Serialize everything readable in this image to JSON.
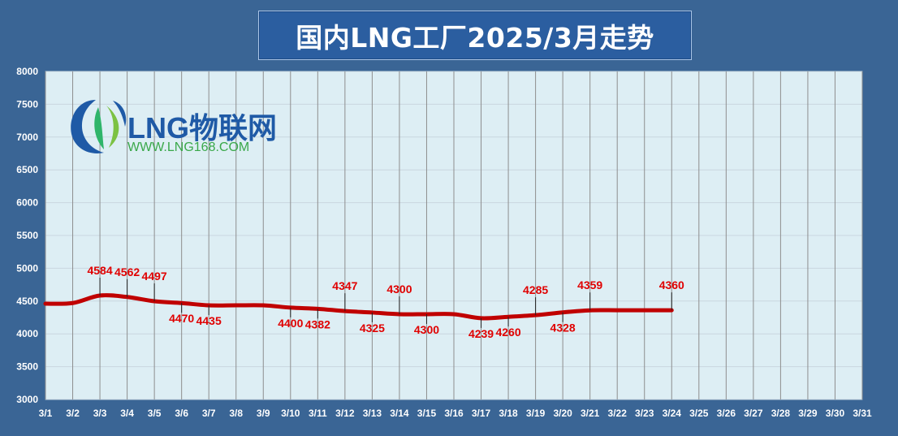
{
  "header": {
    "title": "国内LNG工厂2025/3月走势"
  },
  "logo": {
    "brand": "LNG物联网",
    "url": "WWW.LNG168.COM"
  },
  "colors": {
    "background": "#3a6595",
    "plot_bg": "#ddeef4",
    "line": "#c00000",
    "label": "#e00000",
    "axis_text": "#ffffff"
  },
  "chart_data": {
    "type": "line",
    "title": "国内LNG工厂2025/3月走势",
    "xlabel": "",
    "ylabel": "",
    "ylim": [
      3000,
      8000
    ],
    "y_ticks": [
      3000,
      3500,
      4000,
      4500,
      5000,
      5500,
      6000,
      6500,
      7000,
      7500,
      8000
    ],
    "x_ticks": [
      "3/1",
      "3/2",
      "3/3",
      "3/4",
      "3/5",
      "3/6",
      "3/7",
      "3/8",
      "3/9",
      "3/10",
      "3/11",
      "3/12",
      "3/13",
      "3/14",
      "3/15",
      "3/16",
      "3/17",
      "3/18",
      "3/19",
      "3/20",
      "3/21",
      "3/22",
      "3/23",
      "3/24",
      "3/25",
      "3/26",
      "3/27",
      "3/28",
      "3/29",
      "3/30",
      "3/31"
    ],
    "grid": true,
    "legend": "none",
    "series": [
      {
        "x": [
          "3/1",
          "3/2",
          "3/3",
          "3/4",
          "3/5",
          "3/6",
          "3/7",
          "3/8",
          "3/9",
          "3/10",
          "3/11",
          "3/12",
          "3/13",
          "3/14",
          "3/15",
          "3/16",
          "3/17",
          "3/18",
          "3/19",
          "3/20",
          "3/21",
          "3/22",
          "3/23",
          "3/24"
        ],
        "values": [
          4460,
          4470,
          4584,
          4562,
          4497,
          4470,
          4435,
          4435,
          4435,
          4400,
          4382,
          4347,
          4325,
          4300,
          4300,
          4300,
          4239,
          4260,
          4285,
          4328,
          4359,
          4360,
          4360,
          4360
        ]
      }
    ],
    "annotations": [
      {
        "x": "3/3",
        "value": 4584,
        "text": "4584",
        "pos": "above"
      },
      {
        "x": "3/4",
        "value": 4562,
        "text": "4562",
        "pos": "above"
      },
      {
        "x": "3/5",
        "value": 4497,
        "text": "4497",
        "pos": "above"
      },
      {
        "x": "3/6",
        "value": 4470,
        "text": "4470",
        "pos": "below"
      },
      {
        "x": "3/7",
        "value": 4435,
        "text": "4435",
        "pos": "below"
      },
      {
        "x": "3/10",
        "value": 4400,
        "text": "4400",
        "pos": "below"
      },
      {
        "x": "3/11",
        "value": 4382,
        "text": "4382",
        "pos": "below"
      },
      {
        "x": "3/12",
        "value": 4347,
        "text": "4347",
        "pos": "above"
      },
      {
        "x": "3/13",
        "value": 4325,
        "text": "4325",
        "pos": "below"
      },
      {
        "x": "3/14",
        "value": 4300,
        "text": "4300",
        "pos": "above"
      },
      {
        "x": "3/15",
        "value": 4300,
        "text": "4300",
        "pos": "below"
      },
      {
        "x": "3/17",
        "value": 4239,
        "text": "4239",
        "pos": "below"
      },
      {
        "x": "3/18",
        "value": 4260,
        "text": "4260",
        "pos": "below"
      },
      {
        "x": "3/19",
        "value": 4285,
        "text": "4285",
        "pos": "above"
      },
      {
        "x": "3/20",
        "value": 4328,
        "text": "4328",
        "pos": "below"
      },
      {
        "x": "3/21",
        "value": 4359,
        "text": "4359",
        "pos": "above"
      },
      {
        "x": "3/24",
        "value": 4360,
        "text": "4360",
        "pos": "above"
      }
    ]
  }
}
